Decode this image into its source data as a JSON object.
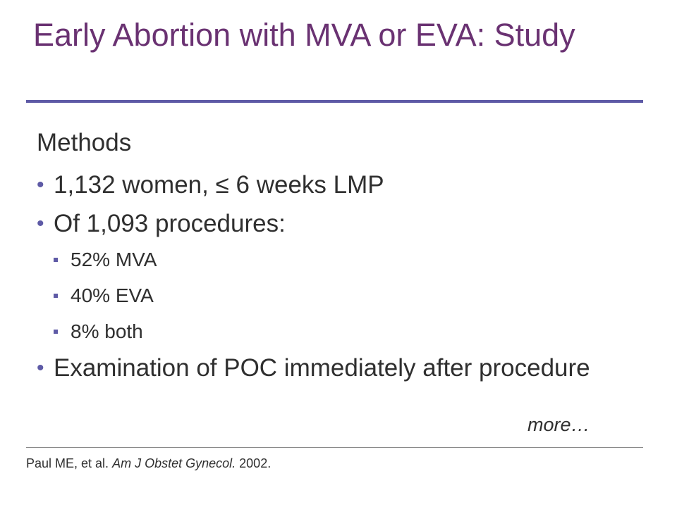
{
  "slide": {
    "title": "Early Abortion with MVA or EVA: Study",
    "section_heading": "Methods",
    "bullets": [
      {
        "text": "1,132 women, ≤ 6 weeks LMP"
      },
      {
        "text": "Of 1,093 procedures:"
      },
      {
        "text": "Examination of POC immediately after procedure"
      }
    ],
    "sub_bullets": [
      {
        "text": "52% MVA"
      },
      {
        "text": "40% EVA"
      },
      {
        "text": "8% both"
      }
    ],
    "more_label": "more…",
    "citation": {
      "authors": "Paul ME, et al.",
      "journal": "Am J Obstet Gynecol.",
      "year": "2002."
    },
    "colors": {
      "title": "#6a3272",
      "accent": "#5e5aa6",
      "text": "#2f2f2f"
    }
  }
}
